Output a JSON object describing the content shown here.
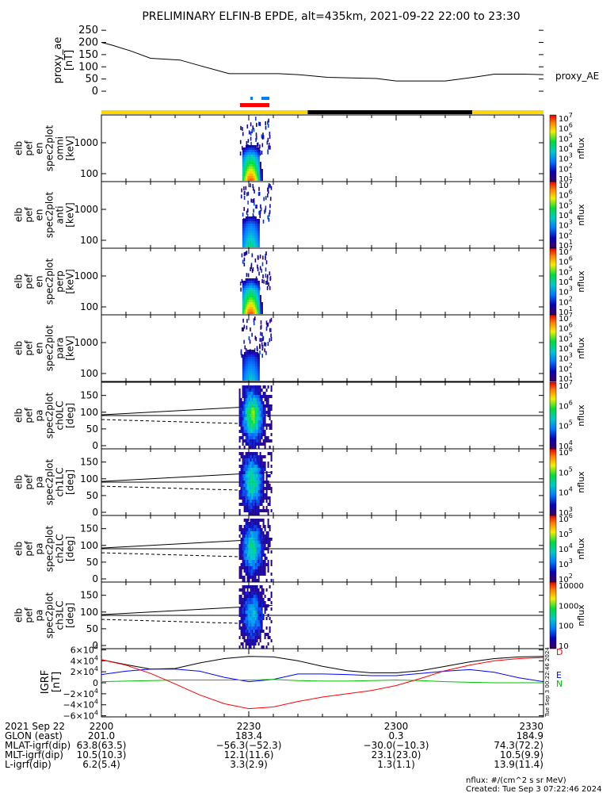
{
  "title": "PRELIMINARY ELFIN-B EPDE, alt=435km, 2021-09-22 22:00 to 23:30",
  "footer": {
    "units": "nflux: #/(cm^2 s sr MeV)",
    "created": "Created: Tue Sep  3 07:22:46 2024",
    "vertical_stamp": "Tue Sep  3 00:22:46 2024"
  },
  "colors": {
    "sunlit": "#ffd700",
    "shadow": "#000000",
    "science_zone": "#ff0000",
    "marker": "#0080ff",
    "grf_total": "#000000",
    "grf_east": "#0000ff",
    "grf_north": "#00c000",
    "grf_down": "#ff0000"
  },
  "chart_data": [
    {
      "panel": "proxy_ae",
      "type": "line",
      "ylabel_lines": [
        "proxy_ae",
        "[nT]"
      ],
      "right_label": "proxy_AE",
      "yticks": [
        "250",
        "200",
        "150",
        "100",
        "50",
        "0"
      ],
      "ylim": [
        0,
        270
      ],
      "x_minutes": [
        0,
        2,
        6,
        10,
        16,
        20,
        26,
        30,
        36,
        40,
        46,
        50,
        56,
        60,
        66,
        70,
        76,
        80,
        86,
        90
      ],
      "values": [
        200,
        190,
        165,
        135,
        128,
        105,
        72,
        72,
        72,
        68,
        57,
        55,
        52,
        42,
        42,
        42,
        58,
        70,
        70,
        68
      ]
    },
    {
      "panel": "orbit_bars",
      "type": "bar",
      "segments": [
        {
          "label": "sunlit",
          "start": 0,
          "end": 42
        },
        {
          "label": "shadow",
          "start": 42,
          "end": 75.5
        },
        {
          "label": "sunlit",
          "start": 75.5,
          "end": 90
        }
      ],
      "science_zone": [
        28.2,
        34.2
      ]
    },
    {
      "panel": "spectra",
      "type": "heatmap",
      "xlim_minutes": [
        0,
        90
      ],
      "data_window_minutes": [
        28.0,
        34.5
      ],
      "panels": [
        {
          "ylabel_lines": [
            "elb",
            "pef",
            "en",
            "spec2plot",
            "omni",
            "[keV]"
          ],
          "yticks": [
            "1000",
            "100"
          ],
          "yscale": "log",
          "cbar_ticks": [
            "10^7",
            "10^6",
            "10^5",
            "10^4",
            "10^3",
            "10^2",
            "10^1"
          ],
          "cbar_label": "nflux",
          "peak_intensity": 0.95
        },
        {
          "ylabel_lines": [
            "elb",
            "pef",
            "en",
            "spec2plot",
            "anti",
            "[keV]"
          ],
          "yticks": [
            "1000",
            "100"
          ],
          "yscale": "log",
          "cbar_ticks": [
            "10^7",
            "10^6",
            "10^5",
            "10^4",
            "10^3",
            "10^2",
            "10^1"
          ],
          "cbar_label": "nflux",
          "peak_intensity": 0.55
        },
        {
          "ylabel_lines": [
            "elb",
            "pef",
            "en",
            "spec2plot",
            "perp",
            "[keV]"
          ],
          "yticks": [
            "1000",
            "100"
          ],
          "yscale": "log",
          "cbar_ticks": [
            "10^7",
            "10^6",
            "10^5",
            "10^4",
            "10^3",
            "10^2",
            "10^1"
          ],
          "cbar_label": "nflux",
          "peak_intensity": 0.95
        },
        {
          "ylabel_lines": [
            "elb",
            "pef",
            "en",
            "spec2plot",
            "para",
            "[keV]"
          ],
          "yticks": [
            "1000",
            "100"
          ],
          "yscale": "log",
          "cbar_ticks": [
            "10^7",
            "10^6",
            "10^5",
            "10^4",
            "10^3",
            "10^2",
            "10^1"
          ],
          "cbar_label": "nflux",
          "peak_intensity": 0.45
        }
      ]
    },
    {
      "panel": "pitch_angle",
      "type": "heatmap",
      "ylim": [
        0,
        180
      ],
      "loss_cone_solid_deg": [
        92,
        120
      ],
      "loss_cone_dashed_deg": [
        78,
        66
      ],
      "panels": [
        {
          "ylabel_lines": [
            "elb",
            "pef",
            "pa",
            "spec2plot",
            "ch0LC",
            "[deg]"
          ],
          "yticks": [
            "150",
            "100",
            "50",
            "0"
          ],
          "cbar_ticks": [
            "10^7",
            "10^6",
            "10^5",
            "10^4"
          ],
          "cbar_label": "nflux",
          "peak_intensity": 0.65
        },
        {
          "ylabel_lines": [
            "elb",
            "pef",
            "pa",
            "spec2plot",
            "ch1LC",
            "[deg]"
          ],
          "yticks": [
            "150",
            "100",
            "50",
            "0"
          ],
          "cbar_ticks": [
            "10^6",
            "10^5",
            "10^4",
            "10^3"
          ],
          "cbar_label": "nflux",
          "peak_intensity": 0.55
        },
        {
          "ylabel_lines": [
            "elb",
            "pef",
            "pa",
            "spec2plot",
            "ch2LC",
            "[deg]"
          ],
          "yticks": [
            "150",
            "100",
            "50",
            "0"
          ],
          "cbar_ticks": [
            "10^6",
            "10^5",
            "10^4",
            "10^3",
            "10^2"
          ],
          "cbar_label": "nflux",
          "peak_intensity": 0.5
        },
        {
          "ylabel_lines": [
            "elb",
            "pef",
            "pa",
            "spec2plot",
            "ch3LC",
            "[deg]"
          ],
          "yticks": [
            "150",
            "100",
            "50",
            "0"
          ],
          "cbar_ticks": [
            "10000",
            "1000",
            "100",
            "10"
          ],
          "cbar_label": "nflux",
          "peak_intensity": 0.4
        }
      ]
    },
    {
      "panel": "igrf",
      "type": "line",
      "ylabel_lines": [
        "IGRF",
        "[nT]"
      ],
      "yticks": [
        "6×10^4",
        "4×10^4",
        "2×10^4",
        "0",
        "−2×10^4",
        "−4×10^4",
        "−6×10^4"
      ],
      "ylim": [
        -62000,
        62000
      ],
      "x_minutes": [
        0,
        5,
        10,
        15,
        20,
        25,
        30,
        35,
        40,
        45,
        50,
        55,
        60,
        65,
        70,
        75,
        80,
        85,
        90
      ],
      "series": [
        {
          "name": "T",
          "values": [
            42000,
            33000,
            25000,
            26000,
            36000,
            44000,
            48000,
            47000,
            40000,
            30000,
            22000,
            18000,
            18000,
            22000,
            30000,
            38000,
            44000,
            47000,
            48000
          ]
        },
        {
          "name": "E",
          "values": [
            15000,
            21000,
            25000,
            25000,
            21000,
            10000,
            2000,
            6000,
            16000,
            16000,
            15000,
            13000,
            13000,
            17000,
            21000,
            24000,
            19000,
            9000,
            2000
          ]
        },
        {
          "name": "N",
          "values": [
            2000,
            3000,
            4000,
            5000,
            5000,
            5000,
            5000,
            6000,
            4000,
            3000,
            3000,
            4000,
            5000,
            4000,
            2000,
            800,
            0,
            0,
            0
          ]
        },
        {
          "name": "D",
          "values": [
            42000,
            32000,
            17000,
            -2000,
            -22000,
            -38000,
            -47000,
            -44000,
            -34000,
            -26000,
            -20000,
            -14000,
            -5000,
            8000,
            22000,
            32000,
            40000,
            44000,
            46000
          ]
        }
      ]
    }
  ],
  "time_table": {
    "labels": [
      "2021 Sep 22",
      "GLON (east)",
      "MLAT-igrf(dip)",
      "MLT-igrf(dip)",
      "L-igrf(dip)"
    ],
    "columns": [
      {
        "values": [
          "2200",
          "201.0",
          "63.8(63.5)",
          "10.5(10.3)",
          "6.2(5.4)"
        ]
      },
      {
        "values": [
          "2230",
          "183.4",
          "−56.3(−52.3)",
          "12.1(11.6)",
          "3.3(2.9)"
        ]
      },
      {
        "values": [
          "2300",
          "0.3",
          "−30.0(−10.3)",
          "23.1(23.0)",
          "1.3(1.1)"
        ]
      },
      {
        "values": [
          "2330",
          "184.9",
          "74.3(72.2)",
          "10.5(9.9)",
          "13.9(11.4)"
        ]
      }
    ]
  }
}
